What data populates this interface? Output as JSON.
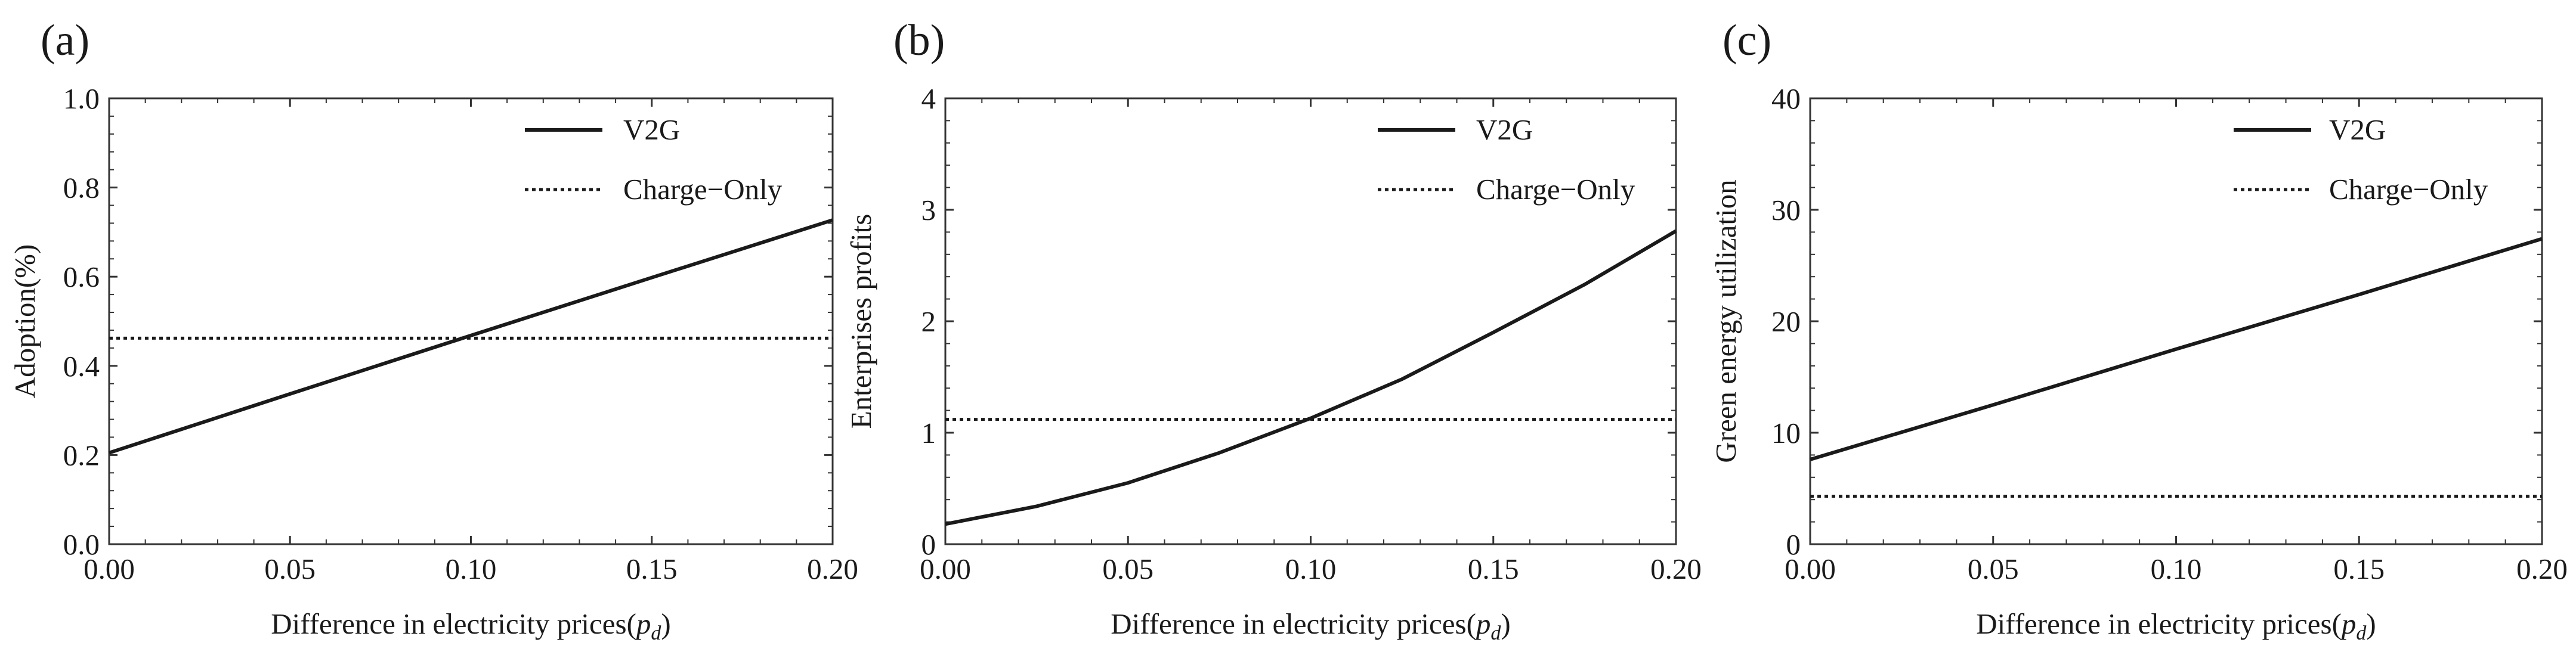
{
  "figure": {
    "panels": [
      "(a)",
      "(b)",
      "(c)"
    ]
  },
  "chart_data": [
    {
      "type": "line",
      "panel_label": "(a)",
      "title": "",
      "xlabel": "Difference in electricity prices(",
      "xlabel_var": "p",
      "xlabel_sub": "d",
      "xlabel_close": ")",
      "ylabel": "Adoption(%)",
      "xlim": [
        0,
        0.2
      ],
      "ylim": [
        0,
        1.0
      ],
      "xticks": [
        "0.00",
        "0.05",
        "0.10",
        "0.15",
        "0.20"
      ],
      "yticks": [
        "0.0",
        "0.2",
        "0.4",
        "0.6",
        "0.8",
        "1.0"
      ],
      "legend_position": "top-right",
      "series": [
        {
          "name": "V2G",
          "style": "solid",
          "x": [
            0,
            0.05,
            0.1,
            0.15,
            0.2
          ],
          "y": [
            0.205,
            0.337,
            0.468,
            0.598,
            0.727
          ]
        },
        {
          "name": "Charge−Only",
          "style": "dotted",
          "x": [
            0,
            0.2
          ],
          "y": [
            0.462,
            0.462
          ]
        }
      ]
    },
    {
      "type": "line",
      "panel_label": "(b)",
      "title": "",
      "xlabel": "Difference in electricity prices(",
      "xlabel_var": "p",
      "xlabel_sub": "d",
      "xlabel_close": ")",
      "ylabel": "Enterprises profits",
      "xlim": [
        0,
        0.2
      ],
      "ylim": [
        0,
        4
      ],
      "xticks": [
        "0.00",
        "0.05",
        "0.10",
        "0.15",
        "0.20"
      ],
      "yticks": [
        "0",
        "1",
        "2",
        "3",
        "4"
      ],
      "legend_position": "top-right",
      "series": [
        {
          "name": "V2G",
          "style": "solid",
          "x": [
            0,
            0.025,
            0.05,
            0.075,
            0.1,
            0.125,
            0.15,
            0.175,
            0.2
          ],
          "y": [
            0.18,
            0.34,
            0.55,
            0.82,
            1.13,
            1.48,
            1.9,
            2.33,
            2.81
          ]
        },
        {
          "name": "Charge−Only",
          "style": "dotted",
          "x": [
            0,
            0.2
          ],
          "y": [
            1.12,
            1.12
          ]
        }
      ]
    },
    {
      "type": "line",
      "panel_label": "(c)",
      "title": "",
      "xlabel": "Difference in electricity prices(",
      "xlabel_var": "p",
      "xlabel_sub": "d",
      "xlabel_close": ")",
      "ylabel": "Green energy utilization",
      "xlim": [
        0,
        0.2
      ],
      "ylim": [
        0,
        40
      ],
      "xticks": [
        "0.00",
        "0.05",
        "0.10",
        "0.15",
        "0.20"
      ],
      "yticks": [
        "0",
        "10",
        "20",
        "30",
        "40"
      ],
      "legend_position": "top-right",
      "series": [
        {
          "name": "V2G",
          "style": "solid",
          "x": [
            0,
            0.05,
            0.1,
            0.15,
            0.2
          ],
          "y": [
            7.6,
            12.5,
            17.5,
            22.4,
            27.4
          ]
        },
        {
          "name": "Charge−Only",
          "style": "dotted",
          "x": [
            0,
            0.2
          ],
          "y": [
            4.3,
            4.3
          ]
        }
      ]
    }
  ]
}
